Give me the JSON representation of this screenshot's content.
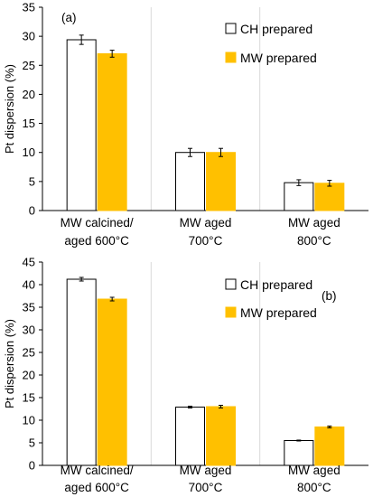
{
  "chart_data": [
    {
      "type": "bar",
      "panel_label": "(a)",
      "categories": [
        [
          "MW calcined/",
          "aged 600°C"
        ],
        [
          "MW aged",
          "700°C"
        ],
        [
          "MW aged",
          "800°C"
        ]
      ],
      "series": [
        {
          "name": "CH prepared",
          "values": [
            29.4,
            10.0,
            4.8
          ],
          "errors": [
            0.8,
            0.7,
            0.5
          ],
          "color": "#ffffff"
        },
        {
          "name": "MW prepared",
          "values": [
            27.0,
            10.0,
            4.7
          ],
          "errors": [
            0.6,
            0.7,
            0.5
          ],
          "color": "#ffc000"
        }
      ],
      "ylabel": "Pt dispersion (%)",
      "xlabel": "",
      "ylim": [
        0,
        35
      ],
      "yticks": [
        0,
        5,
        10,
        15,
        20,
        25,
        30,
        35
      ],
      "grid": "vertical separators between categories",
      "legend_position": "top-right"
    },
    {
      "type": "bar",
      "panel_label": "(b)",
      "categories": [
        [
          "MW calcined/",
          "aged 600°C"
        ],
        [
          "MW aged",
          "700°C"
        ],
        [
          "MW aged",
          "800°C"
        ]
      ],
      "series": [
        {
          "name": "CH prepared",
          "values": [
            41.2,
            12.9,
            5.5
          ],
          "errors": [
            0.4,
            0.2,
            0.1
          ],
          "color": "#ffffff"
        },
        {
          "name": "MW prepared",
          "values": [
            36.8,
            13.0,
            8.5
          ],
          "errors": [
            0.4,
            0.3,
            0.2
          ],
          "color": "#ffc000"
        }
      ],
      "ylabel": "Pt dispersion (%)",
      "xlabel": "",
      "ylim": [
        0,
        45
      ],
      "yticks": [
        0,
        5,
        10,
        15,
        20,
        25,
        30,
        35,
        40,
        45
      ],
      "grid": "vertical separators between categories",
      "legend_position": "top-right"
    }
  ]
}
